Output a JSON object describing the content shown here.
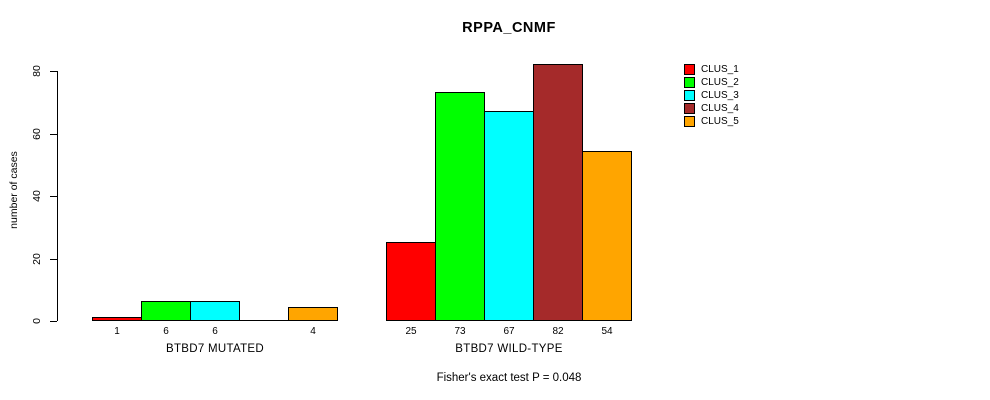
{
  "chart_data": {
    "type": "bar",
    "title": "RPPA_CNMF",
    "xlabel": "",
    "ylabel": "number of cases",
    "ylim": [
      0,
      80
    ],
    "y_ticks": [
      0,
      20,
      40,
      60,
      80
    ],
    "grid": false,
    "legend_position": "top-right",
    "categories": [
      "BTBD7 MUTATED",
      "BTBD7 WILD-TYPE"
    ],
    "series": [
      {
        "name": "CLUS_1",
        "color": "#FF0000",
        "values": [
          1,
          25
        ]
      },
      {
        "name": "CLUS_2",
        "color": "#00FF00",
        "values": [
          6,
          73
        ]
      },
      {
        "name": "CLUS_3",
        "color": "#00FFFF",
        "values": [
          6,
          67
        ]
      },
      {
        "name": "CLUS_4",
        "color": "#A52A2A",
        "values": [
          0,
          82
        ]
      },
      {
        "name": "CLUS_5",
        "color": "#FFA500",
        "values": [
          4,
          54
        ]
      }
    ],
    "bar_value_labels_shown": true,
    "zero_value_labels_hidden": true,
    "annotation": "Fisher's exact test P = 0.048"
  }
}
